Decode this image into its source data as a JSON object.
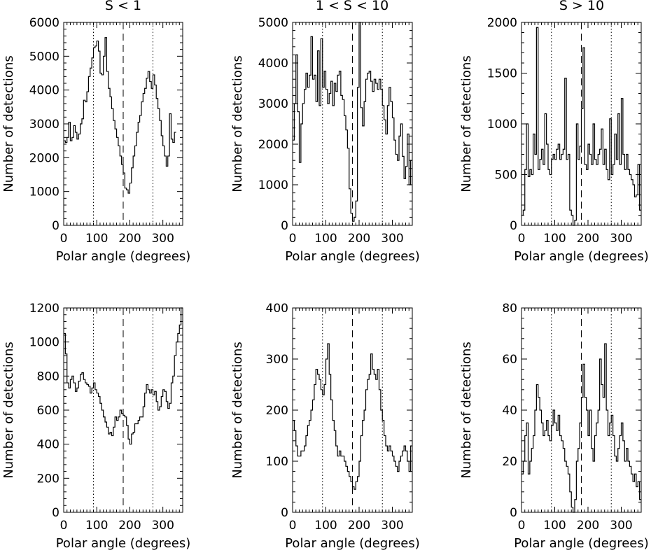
{
  "colors": {
    "line": "#000000",
    "background": "#ffffff"
  },
  "column_titles": [
    "S < 1",
    "1 < S < 10",
    "S > 10"
  ],
  "chart_data": [
    {
      "type": "line",
      "step": true,
      "title": "S < 1",
      "xlabel": "Polar angle (degrees)",
      "ylabel": "Number of detections",
      "xlim": [
        0,
        360
      ],
      "ylim": [
        0,
        6000
      ],
      "xticks": [
        0,
        100,
        200,
        300
      ],
      "yticks": [
        0,
        1000,
        2000,
        3000,
        4000,
        5000,
        6000
      ],
      "reference_lines": [
        {
          "x": 90,
          "style": "dotted"
        },
        {
          "x": 180,
          "style": "dashed"
        },
        {
          "x": 270,
          "style": "dotted"
        }
      ],
      "bin_width": 5,
      "values": [
        2500,
        2450,
        2600,
        3050,
        2500,
        2600,
        2950,
        2750,
        2550,
        2700,
        3000,
        3150,
        3700,
        3650,
        3950,
        4400,
        4650,
        4950,
        5250,
        5300,
        5450,
        5150,
        4500,
        4450,
        5000,
        5550,
        4550,
        4050,
        3800,
        3450,
        3100,
        2850,
        2600,
        2350,
        2050,
        1800,
        1550,
        1100,
        1050,
        950,
        1250,
        1700,
        2050,
        2350,
        2750,
        3050,
        3250,
        3650,
        3900,
        4050,
        4350,
        4550,
        4250,
        4050,
        4450,
        4150,
        3750,
        3450,
        3100,
        2650,
        2350,
        2050,
        1750,
        2050,
        3300,
        2550,
        2450,
        2750
      ]
    },
    {
      "type": "line",
      "step": true,
      "title": "1 < S < 10",
      "xlabel": "Polar angle (degrees)",
      "ylabel": "Number of detections",
      "xlim": [
        0,
        360
      ],
      "ylim": [
        0,
        5000
      ],
      "xticks": [
        0,
        100,
        200,
        300
      ],
      "yticks": [
        0,
        1000,
        2000,
        3000,
        4000,
        5000
      ],
      "reference_lines": [
        {
          "x": 90,
          "style": "dotted"
        },
        {
          "x": 180,
          "style": "dashed"
        },
        {
          "x": 270,
          "style": "dotted"
        }
      ],
      "bin_width": 5,
      "values": [
        2100,
        3000,
        4200,
        2800,
        1550,
        2500,
        3000,
        3350,
        3750,
        3400,
        3700,
        4650,
        3600,
        3700,
        3050,
        4300,
        2950,
        4600,
        3400,
        3800,
        3350,
        3000,
        3250,
        3550,
        2950,
        3500,
        3300,
        3700,
        3800,
        3200,
        3100,
        2700,
        2350,
        1900,
        900,
        300,
        100,
        200,
        600,
        3400,
        5000,
        2900,
        2450,
        3050,
        3600,
        3750,
        3800,
        3550,
        3300,
        3600,
        3500,
        3350,
        3600,
        3350,
        2950,
        2600,
        2250,
        2950,
        3400,
        3050,
        2650,
        2100,
        1750,
        1600,
        2200,
        2500,
        1700,
        1150,
        1450,
        2250,
        1000,
        1600
      ]
    },
    {
      "type": "line",
      "step": true,
      "title": "S > 10",
      "xlabel": "Polar angle (degrees)",
      "ylabel": "Number of detections",
      "xlim": [
        0,
        360
      ],
      "ylim": [
        0,
        2000
      ],
      "xticks": [
        0,
        100,
        200,
        300
      ],
      "yticks": [
        0,
        500,
        1000,
        1500,
        2000
      ],
      "reference_lines": [
        {
          "x": 90,
          "style": "dotted"
        },
        {
          "x": 180,
          "style": "dashed"
        },
        {
          "x": 270,
          "style": "dotted"
        }
      ],
      "bin_width": 5,
      "values": [
        100,
        150,
        550,
        1000,
        480,
        550,
        500,
        900,
        700,
        1950,
        550,
        650,
        750,
        600,
        1100,
        800,
        550,
        500,
        650,
        700,
        650,
        750,
        800,
        650,
        700,
        750,
        1450,
        650,
        700,
        150,
        100,
        0,
        50,
        1000,
        650,
        780,
        1150,
        1750,
        600,
        550,
        800,
        700,
        600,
        1000,
        650,
        600,
        700,
        750,
        950,
        600,
        750,
        550,
        450,
        1050,
        500,
        600,
        900,
        650,
        1100,
        600,
        1250,
        700,
        550,
        700,
        550,
        500,
        450,
        400,
        280,
        300,
        600,
        150
      ]
    },
    {
      "type": "line",
      "step": true,
      "xlabel": "Polar angle (degrees)",
      "ylabel": "Number of detections",
      "xlim": [
        0,
        360
      ],
      "ylim": [
        0,
        1200
      ],
      "xticks": [
        0,
        100,
        200,
        300
      ],
      "yticks": [
        0,
        200,
        400,
        600,
        800,
        1000,
        1200
      ],
      "reference_lines": [
        {
          "x": 90,
          "style": "dotted"
        },
        {
          "x": 180,
          "style": "dashed"
        },
        {
          "x": 270,
          "style": "dotted"
        }
      ],
      "bin_width": 5,
      "values": [
        1050,
        930,
        760,
        730,
        780,
        800,
        760,
        710,
        730,
        770,
        810,
        820,
        780,
        760,
        750,
        740,
        700,
        730,
        760,
        720,
        700,
        680,
        640,
        600,
        560,
        530,
        500,
        460,
        470,
        450,
        500,
        560,
        540,
        560,
        600,
        580,
        570,
        560,
        510,
        430,
        400,
        460,
        470,
        520,
        520,
        540,
        560,
        560,
        620,
        700,
        750,
        720,
        700,
        720,
        690,
        710,
        650,
        600,
        620,
        680,
        720,
        710,
        650,
        610,
        640,
        760,
        800,
        920,
        1000,
        1050,
        1100,
        1200
      ]
    },
    {
      "type": "line",
      "step": true,
      "xlabel": "Polar angle (degrees)",
      "ylabel": "Number of detections",
      "xlim": [
        0,
        360
      ],
      "ylim": [
        0,
        400
      ],
      "xticks": [
        0,
        100,
        200,
        300
      ],
      "yticks": [
        0,
        100,
        200,
        300,
        400
      ],
      "reference_lines": [
        {
          "x": 90,
          "style": "dotted"
        },
        {
          "x": 180,
          "style": "dashed"
        },
        {
          "x": 270,
          "style": "dotted"
        }
      ],
      "bin_width": 5,
      "values": [
        180,
        160,
        130,
        110,
        110,
        120,
        120,
        130,
        150,
        170,
        180,
        200,
        220,
        250,
        280,
        270,
        260,
        240,
        230,
        250,
        300,
        330,
        270,
        220,
        180,
        160,
        130,
        110,
        120,
        110,
        110,
        100,
        90,
        80,
        70,
        60,
        50,
        45,
        60,
        70,
        100,
        150,
        180,
        200,
        240,
        260,
        270,
        310,
        280,
        270,
        260,
        280,
        240,
        200,
        180,
        150,
        130,
        120,
        130,
        120,
        110,
        100,
        90,
        80,
        100,
        110,
        120,
        130,
        120,
        100,
        80,
        130
      ]
    },
    {
      "type": "line",
      "step": true,
      "xlabel": "Polar angle (degrees)",
      "ylabel": "Number of detections",
      "xlim": [
        0,
        360
      ],
      "ylim": [
        0,
        80
      ],
      "xticks": [
        0,
        100,
        200,
        300
      ],
      "yticks": [
        0,
        20,
        40,
        60,
        80
      ],
      "reference_lines": [
        {
          "x": 90,
          "style": "dotted"
        },
        {
          "x": 180,
          "style": "dashed"
        },
        {
          "x": 270,
          "style": "dotted"
        }
      ],
      "bin_width": 5,
      "values": [
        15,
        20,
        30,
        35,
        15,
        20,
        25,
        30,
        40,
        50,
        45,
        40,
        35,
        30,
        32,
        36,
        30,
        28,
        34,
        40,
        35,
        32,
        38,
        30,
        28,
        25,
        20,
        18,
        15,
        8,
        2,
        0,
        5,
        20,
        25,
        35,
        45,
        58,
        45,
        40,
        30,
        40,
        25,
        20,
        30,
        35,
        40,
        60,
        50,
        45,
        66,
        40,
        30,
        35,
        38,
        30,
        22,
        20,
        25,
        30,
        35,
        28,
        20,
        25,
        20,
        18,
        15,
        12,
        15,
        10,
        12,
        5
      ]
    }
  ]
}
